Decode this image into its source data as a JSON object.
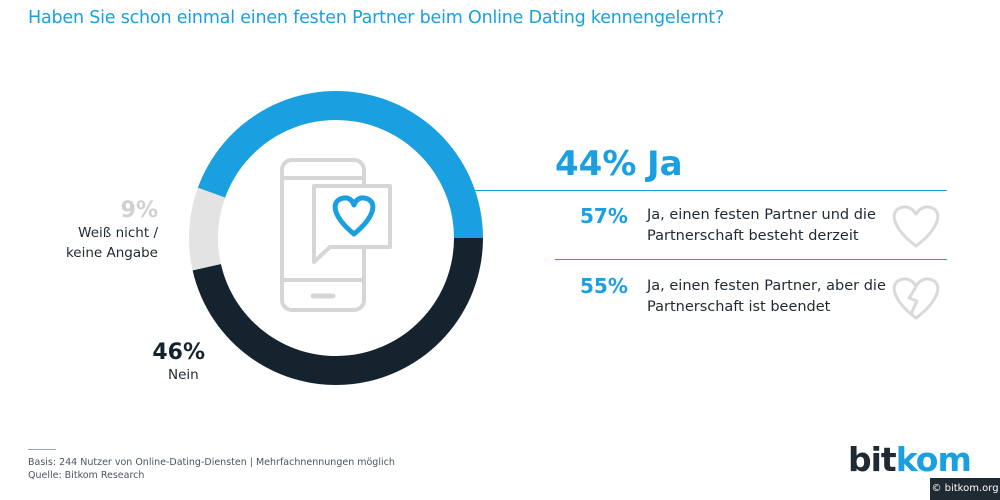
{
  "title": "Haben Sie schon einmal einen festen Partner beim Online Dating kennengelernt?",
  "chart_data": {
    "type": "pie",
    "variant": "donut",
    "slices": [
      {
        "label": "Ja",
        "value": 44,
        "display": "44%",
        "color": "#1aa0e0"
      },
      {
        "label": "Nein",
        "value": 46,
        "display": "46%",
        "color": "#14232d"
      },
      {
        "label": "Weiß nicht / keine Angabe",
        "value": 9,
        "display": "9%",
        "color": "#e3e3e3"
      }
    ],
    "breakdown": {
      "parent": "Ja",
      "items": [
        {
          "display": "57%",
          "value": 57,
          "label": "Ja, einen festen Partner und die Partnerschaft besteht derzeit",
          "icon": "heart-icon"
        },
        {
          "display": "55%",
          "value": 55,
          "label": "Ja, einen festen Partner, aber die Partnerschaft ist beendet",
          "icon": "broken-heart-icon"
        }
      ]
    }
  },
  "labels": {
    "dontknow_pct": "9%",
    "dontknow_line1": "Weiß nicht /",
    "dontknow_line2": "keine Angabe",
    "nein_pct": "46%",
    "nein_text": "Nein",
    "ja_pct": "44%",
    "ja_text": "Ja",
    "b1_pct": "57%",
    "b1_text": "Ja, einen festen Partner und die Partnerschaft besteht derzeit",
    "b2_pct": "55%",
    "b2_text": "Ja, einen festen Partner, aber die Partnerschaft ist beendet"
  },
  "footer": {
    "basis": "Basis: 244 Nutzer von Online-Dating-Diensten | Mehrfachnennungen möglich",
    "source": "Quelle: Bitkom Research"
  },
  "brand": {
    "part1": "bit",
    "part2": "kom"
  },
  "copyright": "© bitkom.org",
  "colors": {
    "accent": "#1aa0e0",
    "dark": "#14232d",
    "grey": "#e3e3e3",
    "icon": "#d6d6d6"
  }
}
